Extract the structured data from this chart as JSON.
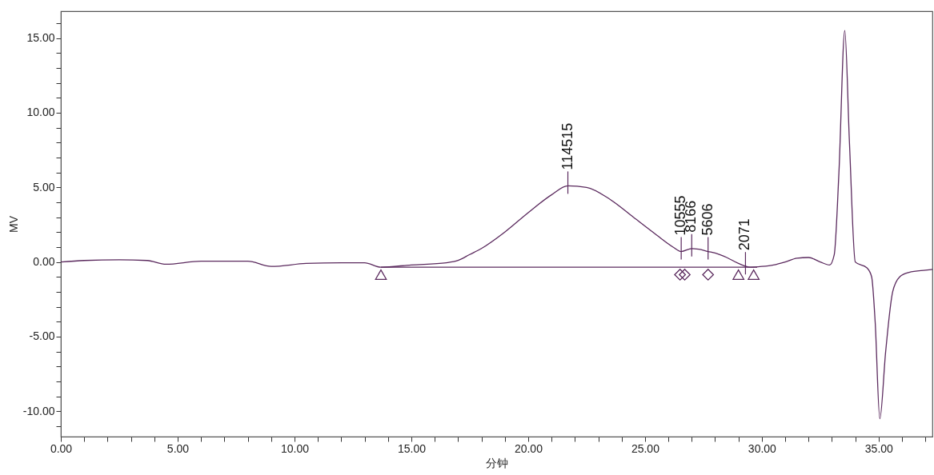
{
  "chart_data": {
    "type": "line",
    "xlabel": "分钟",
    "ylabel": "MV",
    "xlim": [
      0,
      37.3
    ],
    "ylim": [
      -11.7,
      16.8
    ],
    "grid": false,
    "line_style": "solid",
    "marker": "none",
    "xticks": [
      {
        "value": 0,
        "label": "0.00"
      },
      {
        "value": 1,
        "label": null
      },
      {
        "value": 2,
        "label": null
      },
      {
        "value": 3,
        "label": null
      },
      {
        "value": 4,
        "label": null
      },
      {
        "value": 5,
        "label": "5.00"
      },
      {
        "value": 6,
        "label": null
      },
      {
        "value": 7,
        "label": null
      },
      {
        "value": 8,
        "label": null
      },
      {
        "value": 9,
        "label": null
      },
      {
        "value": 10,
        "label": "10.00"
      },
      {
        "value": 11,
        "label": null
      },
      {
        "value": 12,
        "label": null
      },
      {
        "value": 13,
        "label": null
      },
      {
        "value": 14,
        "label": null
      },
      {
        "value": 15,
        "label": "15.00"
      },
      {
        "value": 16,
        "label": null
      },
      {
        "value": 17,
        "label": null
      },
      {
        "value": 18,
        "label": null
      },
      {
        "value": 19,
        "label": null
      },
      {
        "value": 20,
        "label": "20.00"
      },
      {
        "value": 21,
        "label": null
      },
      {
        "value": 22,
        "label": null
      },
      {
        "value": 23,
        "label": null
      },
      {
        "value": 24,
        "label": null
      },
      {
        "value": 25,
        "label": "25.00"
      },
      {
        "value": 26,
        "label": null
      },
      {
        "value": 27,
        "label": null
      },
      {
        "value": 28,
        "label": null
      },
      {
        "value": 29,
        "label": null
      },
      {
        "value": 30,
        "label": "30.00"
      },
      {
        "value": 31,
        "label": null
      },
      {
        "value": 32,
        "label": null
      },
      {
        "value": 33,
        "label": null
      },
      {
        "value": 34,
        "label": null
      },
      {
        "value": 35,
        "label": "35.00"
      },
      {
        "value": 36,
        "label": null
      },
      {
        "value": 37,
        "label": null
      }
    ],
    "yticks": [
      {
        "value": -11,
        "label": null
      },
      {
        "value": -10,
        "label": "-10.00"
      },
      {
        "value": -9,
        "label": null
      },
      {
        "value": -8,
        "label": null
      },
      {
        "value": -7,
        "label": null
      },
      {
        "value": -6,
        "label": null
      },
      {
        "value": -5,
        "label": "-5.00"
      },
      {
        "value": -4,
        "label": null
      },
      {
        "value": -3,
        "label": null
      },
      {
        "value": -2,
        "label": null
      },
      {
        "value": -1,
        "label": null
      },
      {
        "value": 0,
        "label": "0.00"
      },
      {
        "value": 1,
        "label": null
      },
      {
        "value": 2,
        "label": null
      },
      {
        "value": 3,
        "label": null
      },
      {
        "value": 4,
        "label": null
      },
      {
        "value": 5,
        "label": "5.00"
      },
      {
        "value": 6,
        "label": null
      },
      {
        "value": 7,
        "label": null
      },
      {
        "value": 8,
        "label": null
      },
      {
        "value": 9,
        "label": null
      },
      {
        "value": 10,
        "label": "10.00"
      },
      {
        "value": 11,
        "label": null
      },
      {
        "value": 12,
        "label": null
      },
      {
        "value": 13,
        "label": null
      },
      {
        "value": 14,
        "label": null
      },
      {
        "value": 15,
        "label": "15.00"
      },
      {
        "value": 16,
        "label": null
      }
    ],
    "series": [
      {
        "color": "#5b2a5e",
        "x": [
          0,
          1,
          2.5,
          3.7,
          4.5,
          6,
          8,
          9,
          10.5,
          12,
          13,
          13.7,
          15,
          16.5,
          17,
          17.5,
          18,
          19,
          20,
          21,
          21.7,
          22.5,
          23.5,
          24.5,
          25.5,
          26.2,
          26.55,
          27,
          27.3,
          27.7,
          28,
          28.5,
          29,
          29.5,
          30,
          30.5,
          31,
          31.5,
          32,
          32.5,
          32.9,
          33.1,
          33.3,
          33.55,
          33.75,
          34,
          34.5,
          34.7,
          34.85,
          35.05,
          35.3,
          35.6,
          35.9,
          36.3,
          37,
          37.3
        ],
        "values": [
          0,
          0.1,
          0.15,
          0.1,
          -0.15,
          0.05,
          0.05,
          -0.3,
          -0.1,
          -0.05,
          -0.05,
          -0.35,
          -0.2,
          -0.05,
          0.1,
          0.5,
          0.9,
          2.0,
          3.3,
          4.5,
          5.1,
          5.0,
          4.2,
          3.0,
          1.8,
          1.0,
          0.7,
          0.9,
          0.85,
          0.7,
          0.6,
          0.3,
          -0.1,
          -0.35,
          -0.3,
          -0.2,
          0,
          0.25,
          0.3,
          0,
          -0.2,
          0.5,
          6,
          15.5,
          8,
          0,
          -0.4,
          -1,
          -4,
          -10.5,
          -6,
          -2,
          -1,
          -0.7,
          -0.55,
          -0.5
        ]
      },
      {
        "type": "line",
        "color": "#5b2a5e",
        "x": [
          13.7,
          29.8
        ],
        "values": [
          -0.35,
          -0.35
        ]
      },
      {
        "type": "scatter",
        "color": "#5b2a5e",
        "marker": "triangle",
        "x": [
          13.7,
          29.0,
          29.65
        ],
        "values": [
          -0.85,
          -0.85,
          -0.85
        ]
      },
      {
        "type": "scatter",
        "color": "#5b2a5e",
        "marker": "diamond",
        "x": [
          26.5,
          26.7,
          27.7
        ],
        "values": [
          -0.85,
          -0.85,
          -0.85
        ]
      }
    ],
    "annotations": [
      {
        "text": "114515",
        "x": 21.7,
        "y": 5.1
      },
      {
        "text": "10555",
        "x": 26.55,
        "y": 0.7
      },
      {
        "text": "8166",
        "x": 27.0,
        "y": 0.9
      },
      {
        "text": "5606",
        "x": 27.7,
        "y": 0.7
      },
      {
        "text": "2071",
        "x": 29.3,
        "y": -0.3
      }
    ]
  }
}
